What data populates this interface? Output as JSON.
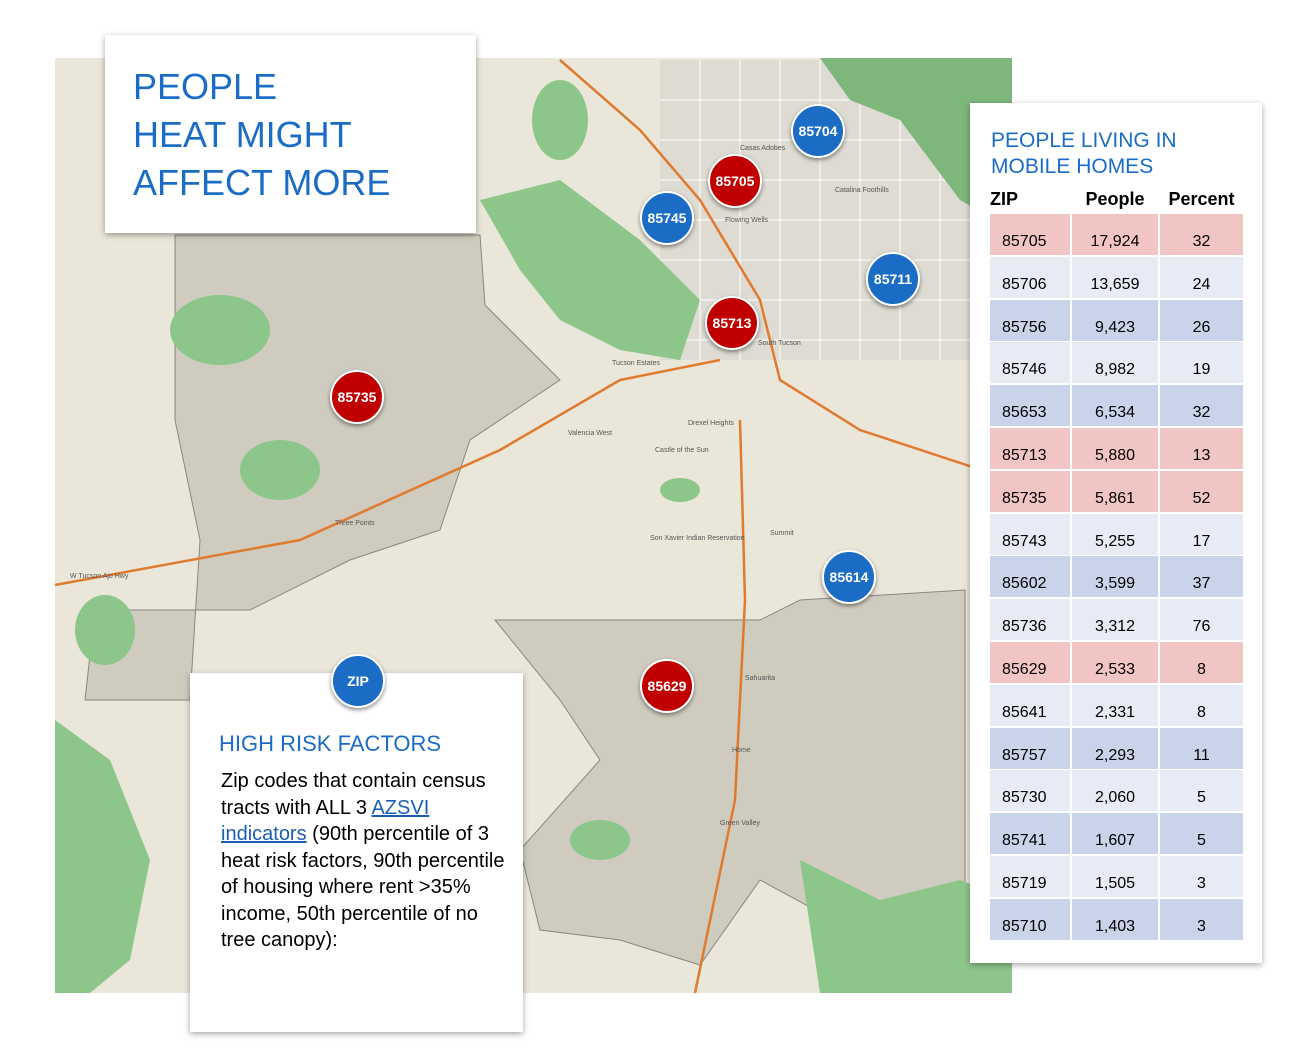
{
  "title": {
    "lines": [
      "PEOPLE",
      "HEAT MIGHT",
      "AFFECT MORE"
    ]
  },
  "markers": [
    {
      "label": "85704",
      "color": "#1a6cc4"
    },
    {
      "label": "85705",
      "color": "#c00000"
    },
    {
      "label": "85745",
      "color": "#1a6cc4"
    },
    {
      "label": "85711",
      "color": "#1a6cc4"
    },
    {
      "label": "85713",
      "color": "#c00000"
    },
    {
      "label": "85735",
      "color": "#c00000"
    },
    {
      "label": "85614",
      "color": "#1a6cc4"
    },
    {
      "label": "85629",
      "color": "#c00000"
    }
  ],
  "legend": {
    "marker": {
      "label": "ZIP",
      "color": "#1a6cc4"
    },
    "heading": "HIGH RISK FACTORS",
    "text_before": "Zip codes that contain census tracts with ALL 3 ",
    "link": "AZSVI indicators",
    "text_after": " (90th percentile of 3 heat risk factors, 90th percentile of housing where rent >35% income, 50th percentile of no tree canopy):"
  },
  "table": {
    "title_lines": [
      "PEOPLE LIVING IN",
      "MOBILE HOMES"
    ],
    "columns": [
      "ZIP",
      "People",
      "Percent"
    ],
    "rows": [
      [
        "85705",
        "17,924",
        "32"
      ],
      [
        "85706",
        "13,659",
        "24"
      ],
      [
        "85756",
        "9,423",
        "26"
      ],
      [
        "85746",
        "8,982",
        "19"
      ],
      [
        "85653",
        "6,534",
        "32"
      ],
      [
        "85713",
        "5,880",
        "13"
      ],
      [
        "85735",
        "5,861",
        "52"
      ],
      [
        "85743",
        "5,255",
        "17"
      ],
      [
        "85602",
        "3,599",
        "37"
      ],
      [
        "85736",
        "3,312",
        "76"
      ],
      [
        "85629",
        "2,533",
        "8"
      ],
      [
        "85641",
        "2,331",
        "8"
      ],
      [
        "85757",
        "2,293",
        "11"
      ],
      [
        "85730",
        "2,060",
        "5"
      ],
      [
        "85741",
        "1,607",
        "5"
      ],
      [
        "85719",
        "1,505",
        "3"
      ],
      [
        "85710",
        "1,403",
        "3"
      ]
    ]
  },
  "map_labels": [
    "W Tucson Ajo Hwy",
    "Three Points",
    "Tucson Estates",
    "Valencia West",
    "Drexel Heights",
    "Son Xavier Indian Reservation",
    "Summit",
    "Sahuarita",
    "Green Valley",
    "Casas Adobes",
    "Flowing Wells",
    "Catalina Foothills",
    "South Tucson",
    "Home",
    "Castle of the Sun"
  ]
}
